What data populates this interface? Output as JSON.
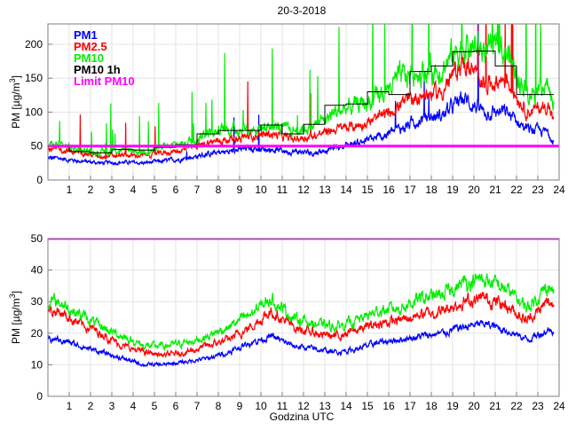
{
  "chart_data": [
    {
      "type": "line",
      "title": "20-3-2018",
      "xlabel": "",
      "ylabel": "PM [µg/m",
      "ylabel_sup": "3",
      "ylabel_end": "]",
      "xlim": [
        0,
        24
      ],
      "ylim": [
        0,
        230
      ],
      "xticks": [
        1,
        2,
        3,
        4,
        5,
        6,
        7,
        8,
        9,
        10,
        11,
        12,
        13,
        14,
        15,
        16,
        17,
        18,
        19,
        20,
        21,
        22,
        23,
        24
      ],
      "yticks": [
        0,
        50,
        100,
        150,
        200
      ],
      "grid": true,
      "legend_position": "top-left",
      "x_end": 23.75,
      "series": [
        {
          "name": "PM1",
          "color": "#0000ff",
          "noise": 0.09,
          "spikes": 0.004,
          "hourly_mean": [
            32,
            28,
            25,
            26,
            25,
            28,
            32,
            38,
            42,
            47,
            45,
            42,
            40,
            48,
            55,
            62,
            75,
            90,
            95,
            120,
            100,
            100,
            75,
            70
          ],
          "end_value": 60
        },
        {
          "name": "PM2.5",
          "color": "#ff0000",
          "noise": 0.08,
          "spikes": 0.006,
          "hourly_mean": [
            45,
            40,
            35,
            36,
            36,
            40,
            45,
            55,
            60,
            65,
            68,
            60,
            65,
            75,
            80,
            90,
            110,
            125,
            130,
            175,
            140,
            150,
            100,
            110
          ],
          "end_value": 85
        },
        {
          "name": "PM10",
          "color": "#00ee00",
          "noise": 0.1,
          "spikes": 0.02,
          "hourly_mean": [
            52,
            45,
            40,
            45,
            42,
            48,
            55,
            70,
            75,
            75,
            80,
            72,
            80,
            100,
            110,
            120,
            150,
            160,
            165,
            200,
            190,
            190,
            130,
            140
          ],
          "end_value": 105
        },
        {
          "name": "PM10 1h",
          "color": "#000000",
          "step": true,
          "hourly_mean": [
            50,
            42,
            40,
            45,
            44,
            48,
            52,
            68,
            73,
            73,
            81,
            68,
            82,
            110,
            112,
            130,
            126,
            160,
            168,
            189,
            190,
            168,
            126,
            126
          ]
        },
        {
          "name": "Limit PM10",
          "color": "#ff00ff",
          "constant": 50
        }
      ]
    },
    {
      "type": "line",
      "title": "",
      "xlabel": "Godzina UTC",
      "ylabel": "PM [µg/m",
      "ylabel_sup": "3",
      "ylabel_end": "]",
      "xlim": [
        0,
        24
      ],
      "ylim": [
        0,
        50
      ],
      "xticks": [
        1,
        2,
        3,
        4,
        5,
        6,
        7,
        8,
        9,
        10,
        11,
        12,
        13,
        14,
        15,
        16,
        17,
        18,
        19,
        20,
        21,
        22,
        23,
        24
      ],
      "yticks": [
        0,
        10,
        20,
        30,
        40,
        50
      ],
      "grid": true,
      "x_end": 23.75,
      "series": [
        {
          "name": "PM1",
          "color": "#0000ff",
          "noise": 0.05,
          "hourly_mean": [
            18,
            16,
            14,
            12,
            10,
            10,
            11,
            12,
            14,
            17,
            19,
            16,
            15,
            14,
            15,
            17,
            18,
            19,
            20,
            22,
            23,
            21,
            18,
            21
          ],
          "end_value": 21
        },
        {
          "name": "PM2.5",
          "color": "#ff0000",
          "noise": 0.06,
          "hourly_mean": [
            27,
            23,
            20,
            16,
            14,
            13,
            14,
            16,
            18,
            22,
            27,
            22,
            20,
            19,
            21,
            23,
            24,
            26,
            27,
            30,
            31,
            29,
            24,
            30
          ],
          "end_value": 29
        },
        {
          "name": "PM10",
          "color": "#00ee00",
          "noise": 0.06,
          "hourly_mean": [
            30,
            26,
            22,
            19,
            16,
            16,
            17,
            19,
            22,
            26,
            31,
            25,
            23,
            22,
            24,
            27,
            28,
            31,
            32,
            36,
            37,
            34,
            28,
            35
          ],
          "end_value": 33
        },
        {
          "name": "Limit PM10",
          "color": "#ff00ff",
          "constant": 50
        }
      ]
    }
  ]
}
